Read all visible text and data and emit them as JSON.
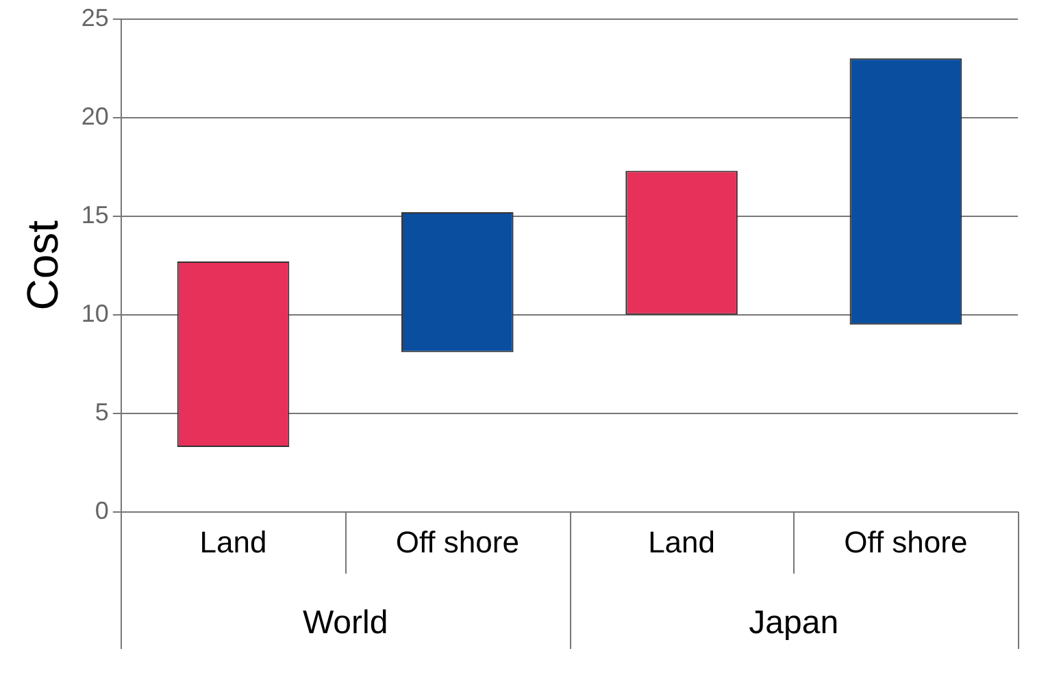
{
  "chart_data": {
    "type": "bar",
    "ylabel": "Cost",
    "categories": [
      "Land",
      "Off shore",
      "Land",
      "Off shore"
    ],
    "base": [
      3.3,
      8.1,
      10,
      9.5
    ],
    "values": [
      9.4,
      7.1,
      7.3,
      13.5
    ],
    "colors": [
      "#e8315a",
      "#0a4ea0",
      "#e8315a",
      "#0a4ea0"
    ],
    "ylim": [
      0,
      25
    ],
    "yticks": [
      0,
      5,
      10,
      15,
      20,
      25
    ],
    "grid": "y",
    "legend": false,
    "annotations": [
      "World",
      "Japan"
    ]
  }
}
